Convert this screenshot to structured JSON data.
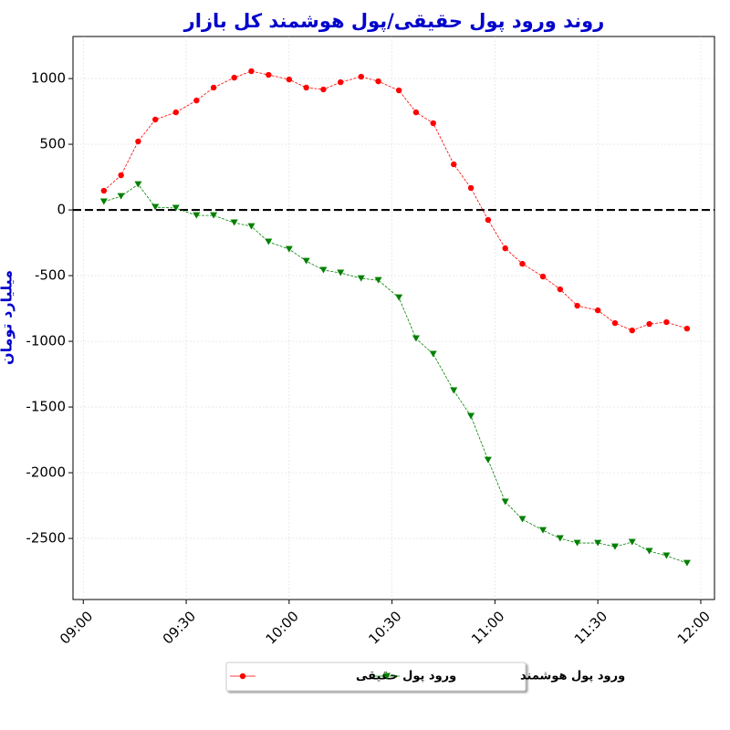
{
  "chart_data": {
    "type": "line",
    "title": "روند ورود پول حقیقی/پول هوشمند کل بازار",
    "y_label": "میلیارد تومان",
    "x": [
      "09:06",
      "09:11",
      "09:16",
      "09:21",
      "09:27",
      "09:33",
      "09:38",
      "09:44",
      "09:49",
      "09:54",
      "10:00",
      "10:05",
      "10:10",
      "10:15",
      "10:21",
      "10:26",
      "10:32",
      "10:37",
      "10:42",
      "10:48",
      "10:53",
      "10:58",
      "11:03",
      "11:08",
      "11:14",
      "11:19",
      "11:24",
      "11:30",
      "11:35",
      "11:40",
      "11:45",
      "11:50",
      "11:56"
    ],
    "series": [
      {
        "name": "ورود پول حقیقی",
        "color": "#ff0000",
        "marker": "circle",
        "values": [
          146,
          264,
          521,
          688,
          743,
          833,
          931,
          1007,
          1056,
          1028,
          993,
          931,
          917,
          972,
          1014,
          979,
          910,
          743,
          660,
          347,
          167,
          -76,
          -292,
          -410,
          -507,
          -604,
          -729,
          -764,
          -861,
          -917,
          -868,
          -854,
          -903
        ]
      },
      {
        "name": "ورود پول هوشمند",
        "color": "#008000",
        "marker": "triangle-down",
        "values": [
          63,
          104,
          194,
          21,
          14,
          -42,
          -42,
          -97,
          -125,
          -243,
          -299,
          -389,
          -458,
          -479,
          -521,
          -535,
          -667,
          -979,
          -1097,
          -1375,
          -1569,
          -1903,
          -2222,
          -2354,
          -2438,
          -2500,
          -2535,
          -2535,
          -2563,
          -2528,
          -2597,
          -2632,
          -2688
        ]
      }
    ],
    "reference_line": 0,
    "xlim": [
      "08:57",
      "12:04"
    ],
    "xticks": [
      "09:00",
      "09:30",
      "10:00",
      "10:30",
      "11:00",
      "11:30",
      "12:00"
    ],
    "ylim": [
      -2965,
      1320
    ],
    "yticks": [
      -2500,
      -2000,
      -1500,
      -1000,
      -500,
      0,
      500,
      1000
    ],
    "grid": true,
    "legend": "bottom"
  }
}
